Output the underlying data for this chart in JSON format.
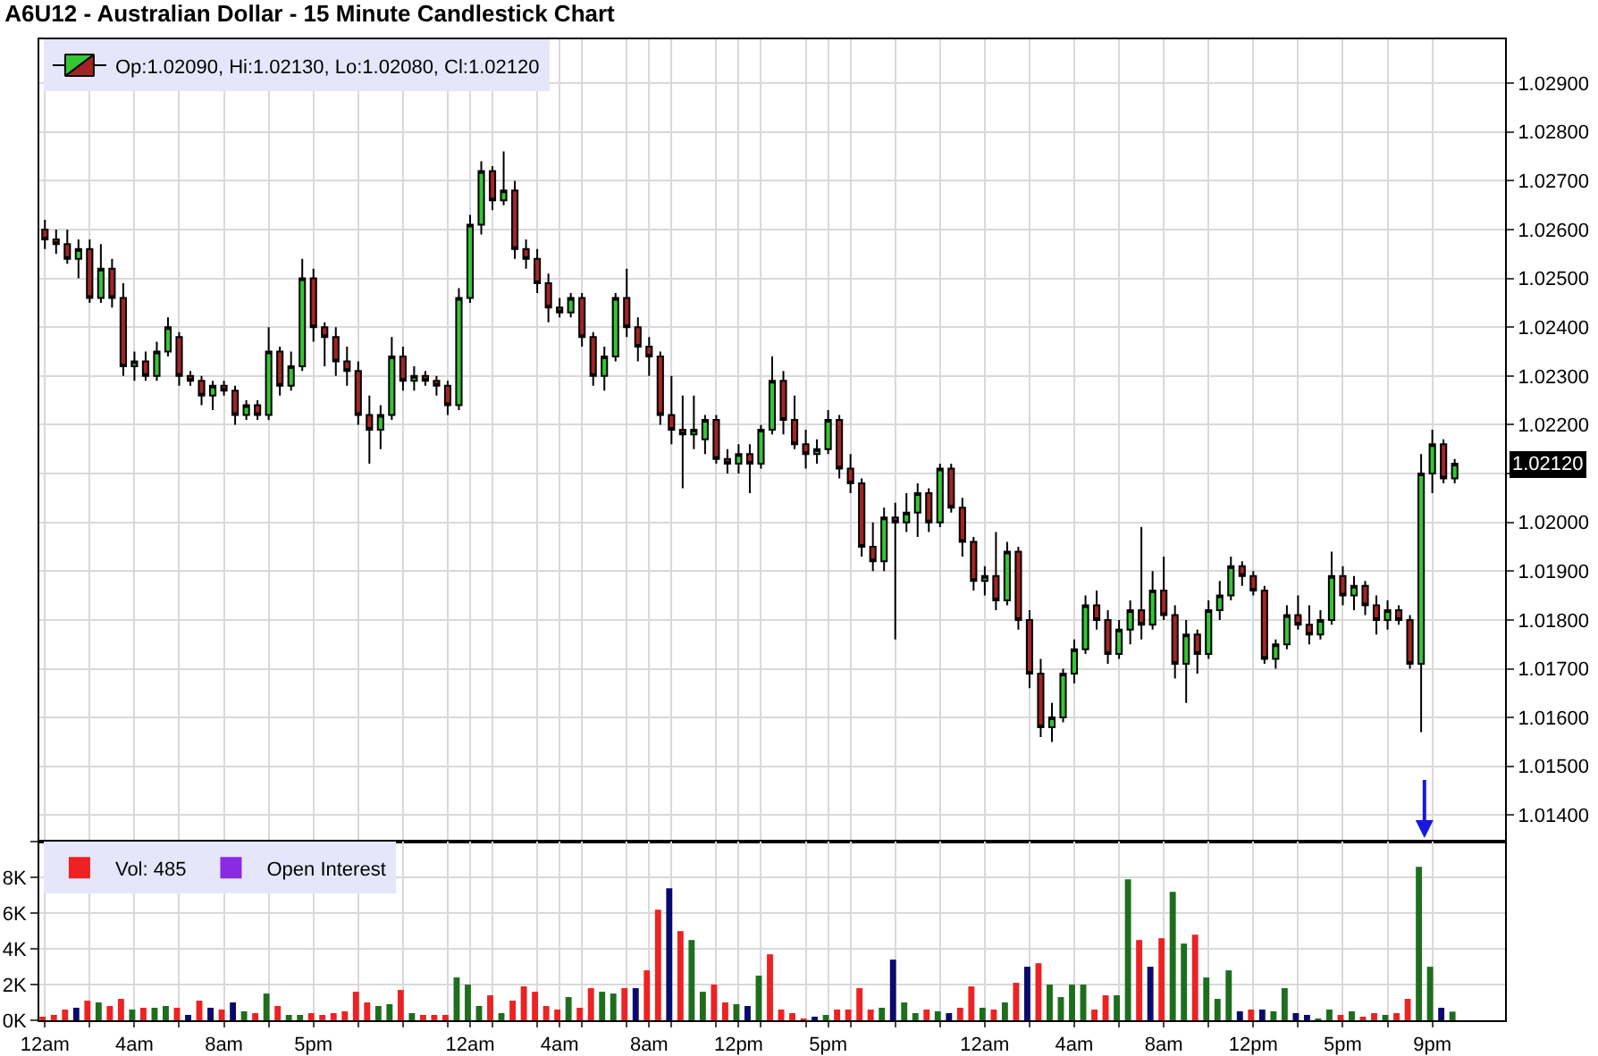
{
  "chart_data": [
    {
      "type": "candlestick",
      "title": "A6U12 - Australian Dollar - 15 Minute Candlestick Chart",
      "tick_labels": "y",
      "grid": true,
      "legend": "top left",
      "categories": [
        null,
        null,
        null,
        null,
        null,
        null,
        null,
        null,
        null,
        null,
        null,
        null,
        null,
        null,
        null,
        null,
        null,
        null,
        null,
        null,
        null,
        null,
        null,
        null,
        null,
        null,
        null,
        null,
        null,
        null,
        null,
        null,
        null,
        null,
        null,
        null,
        null,
        null,
        null,
        null,
        null,
        null,
        null,
        null,
        null,
        null,
        null,
        null,
        null,
        null,
        null,
        null,
        null,
        null,
        null,
        null,
        null,
        null,
        null,
        null,
        null,
        null,
        null,
        null,
        null,
        null,
        null,
        null,
        null,
        null,
        null,
        null,
        null,
        null,
        null,
        null,
        null,
        null,
        null,
        null,
        null,
        null,
        null,
        null,
        null,
        null,
        null,
        null,
        null,
        null,
        null,
        null,
        null,
        null,
        null,
        null,
        null,
        null,
        null,
        null,
        null,
        null,
        null,
        null,
        null,
        null,
        null,
        null,
        null,
        null,
        null,
        null,
        null,
        null,
        null,
        null,
        null,
        null,
        null,
        null,
        null,
        null,
        null,
        null,
        null,
        null,
        null
      ],
      "ylim": [
        1.01345,
        1.0299
      ],
      "yticks": [
        {
          "value": 1.014,
          "label": "1.01400"
        },
        {
          "value": 1.015,
          "label": "1.01500"
        },
        {
          "value": 1.016,
          "label": "1.01600"
        },
        {
          "value": 1.017,
          "label": "1.01700"
        },
        {
          "value": 1.018,
          "label": "1.01800"
        },
        {
          "value": 1.019,
          "label": "1.01900"
        },
        {
          "value": 1.02,
          "label": "1.02000"
        },
        {
          "value": 1.021,
          "label": null
        },
        {
          "value": 1.022,
          "label": "1.02200"
        },
        {
          "value": 1.023,
          "label": "1.02300"
        },
        {
          "value": 1.024,
          "label": "1.02400"
        },
        {
          "value": 1.025,
          "label": "1.02500"
        },
        {
          "value": 1.026,
          "label": "1.02600"
        },
        {
          "value": 1.027,
          "label": "1.02700"
        },
        {
          "value": 1.028,
          "label": "1.02800"
        },
        {
          "value": 1.029,
          "label": "1.02900"
        }
      ],
      "annotations": [
        "1.02120"
      ],
      "series": [
        {
          "name": "Op:1.02090, Hi:1.02130, Lo:1.02080, Cl:1.02120",
          "ohlc": [
            [
              1.026,
              1.0262,
              1.0256,
              1.0258
            ],
            [
              1.0258,
              1.026,
              1.0255,
              1.0257
            ],
            [
              1.0257,
              1.026,
              1.0253,
              1.0254
            ],
            [
              1.0254,
              1.0258,
              1.025,
              1.0256
            ],
            [
              1.0256,
              1.0258,
              1.0245,
              1.0246
            ],
            [
              1.0246,
              1.0257,
              1.0245,
              1.0252
            ],
            [
              1.0252,
              1.0254,
              1.0244,
              1.0246
            ],
            [
              1.0246,
              1.0249,
              1.023,
              1.0232
            ],
            [
              1.0232,
              1.0235,
              1.0229,
              1.0233
            ],
            [
              1.0233,
              1.0235,
              1.0229,
              1.023
            ],
            [
              1.023,
              1.0237,
              1.0229,
              1.0235
            ],
            [
              1.0235,
              1.0242,
              1.0234,
              1.024
            ],
            [
              1.0238,
              1.0239,
              1.0228,
              1.023
            ],
            [
              1.023,
              1.0231,
              1.0228,
              1.0229
            ],
            [
              1.0229,
              1.023,
              1.0224,
              1.0226
            ],
            [
              1.0226,
              1.0229,
              1.0223,
              1.0228
            ],
            [
              1.0228,
              1.0229,
              1.0226,
              1.0227
            ],
            [
              1.0227,
              1.0228,
              1.022,
              1.0222
            ],
            [
              1.0222,
              1.0225,
              1.0221,
              1.0224
            ],
            [
              1.0224,
              1.0225,
              1.0221,
              1.0222
            ],
            [
              1.0222,
              1.024,
              1.0221,
              1.0235
            ],
            [
              1.0235,
              1.0236,
              1.0226,
              1.0228
            ],
            [
              1.0228,
              1.0235,
              1.0227,
              1.0232
            ],
            [
              1.0232,
              1.0254,
              1.0231,
              1.025
            ],
            [
              1.025,
              1.0252,
              1.0237,
              1.024
            ],
            [
              1.024,
              1.0241,
              1.0232,
              1.0238
            ],
            [
              1.0238,
              1.024,
              1.023,
              1.0233
            ],
            [
              1.0233,
              1.0236,
              1.0228,
              1.0231
            ],
            [
              1.0231,
              1.0233,
              1.022,
              1.0222
            ],
            [
              1.0222,
              1.0226,
              1.0212,
              1.0219
            ],
            [
              1.0219,
              1.0224,
              1.0215,
              1.0222
            ],
            [
              1.0222,
              1.0238,
              1.0221,
              1.0234
            ],
            [
              1.0234,
              1.0236,
              1.0227,
              1.0229
            ],
            [
              1.0229,
              1.0232,
              1.0227,
              1.023
            ],
            [
              1.023,
              1.0231,
              1.0228,
              1.0229
            ],
            [
              1.0229,
              1.023,
              1.0226,
              1.0228
            ],
            [
              1.0228,
              1.0229,
              1.0222,
              1.0224
            ],
            [
              1.0224,
              1.0248,
              1.0223,
              1.0246
            ],
            [
              1.0246,
              1.0263,
              1.0245,
              1.0261
            ],
            [
              1.0261,
              1.0274,
              1.0259,
              1.0272
            ],
            [
              1.0272,
              1.0273,
              1.0264,
              1.0266
            ],
            [
              1.0266,
              1.0276,
              1.0265,
              1.0268
            ],
            [
              1.0268,
              1.027,
              1.0254,
              1.0256
            ],
            [
              1.0256,
              1.0258,
              1.0252,
              1.0254
            ],
            [
              1.0254,
              1.0256,
              1.0247,
              1.0249
            ],
            [
              1.0249,
              1.0251,
              1.0241,
              1.0244
            ],
            [
              1.0244,
              1.0246,
              1.0242,
              1.0243
            ],
            [
              1.0243,
              1.0247,
              1.0242,
              1.0246
            ],
            [
              1.0246,
              1.0247,
              1.0236,
              1.0238
            ],
            [
              1.0238,
              1.0239,
              1.0228,
              1.023
            ],
            [
              1.023,
              1.0236,
              1.0227,
              1.0234
            ],
            [
              1.0234,
              1.0247,
              1.0233,
              1.0246
            ],
            [
              1.0246,
              1.0252,
              1.0238,
              1.024
            ],
            [
              1.024,
              1.0242,
              1.0233,
              1.0236
            ],
            [
              1.0236,
              1.0238,
              1.023,
              1.0234
            ],
            [
              1.0234,
              1.0235,
              1.022,
              1.0222
            ],
            [
              1.0222,
              1.023,
              1.0216,
              1.0219
            ],
            [
              1.0219,
              1.0226,
              1.0207,
              1.0218
            ],
            [
              1.0218,
              1.0226,
              1.0215,
              1.0219
            ],
            [
              1.0217,
              1.0222,
              1.0214,
              1.0221
            ],
            [
              1.0221,
              1.0222,
              1.0212,
              1.0213
            ],
            [
              1.0213,
              1.0215,
              1.021,
              1.0212
            ],
            [
              1.0212,
              1.0216,
              1.021,
              1.0214
            ],
            [
              1.0214,
              1.0216,
              1.0206,
              1.0212
            ],
            [
              1.0212,
              1.022,
              1.0211,
              1.0219
            ],
            [
              1.0219,
              1.0234,
              1.0218,
              1.0229
            ],
            [
              1.0229,
              1.0231,
              1.0218,
              1.0221
            ],
            [
              1.0221,
              1.0226,
              1.0215,
              1.0216
            ],
            [
              1.0216,
              1.0219,
              1.0211,
              1.0214
            ],
            [
              1.0214,
              1.0217,
              1.0212,
              1.0215
            ],
            [
              1.0215,
              1.0223,
              1.0214,
              1.0221
            ],
            [
              1.0221,
              1.0222,
              1.0209,
              1.0211
            ],
            [
              1.0211,
              1.0214,
              1.0206,
              1.0208
            ],
            [
              1.0208,
              1.0209,
              1.0193,
              1.0195
            ],
            [
              1.0195,
              1.02,
              1.019,
              1.0192
            ],
            [
              1.0192,
              1.0203,
              1.019,
              1.0201
            ],
            [
              1.0201,
              1.0204,
              1.0176,
              1.02
            ],
            [
              1.02,
              1.0206,
              1.0198,
              1.0202
            ],
            [
              1.0202,
              1.0208,
              1.0197,
              1.0206
            ],
            [
              1.0206,
              1.0207,
              1.0198,
              1.02
            ],
            [
              1.02,
              1.0212,
              1.0199,
              1.0211
            ],
            [
              1.0211,
              1.0212,
              1.0202,
              1.0203
            ],
            [
              1.0203,
              1.0205,
              1.0193,
              1.0196
            ],
            [
              1.0196,
              1.0197,
              1.0186,
              1.0188
            ],
            [
              1.0188,
              1.0191,
              1.0185,
              1.0189
            ],
            [
              1.0189,
              1.0198,
              1.0182,
              1.0184
            ],
            [
              1.0184,
              1.0196,
              1.0183,
              1.0194
            ],
            [
              1.0194,
              1.0195,
              1.0178,
              1.018
            ],
            [
              1.018,
              1.0182,
              1.0166,
              1.0169
            ],
            [
              1.0169,
              1.0172,
              1.0156,
              1.0158
            ],
            [
              1.0158,
              1.0163,
              1.0155,
              1.016
            ],
            [
              1.016,
              1.017,
              1.0159,
              1.0169
            ],
            [
              1.0169,
              1.0176,
              1.0167,
              1.0174
            ],
            [
              1.0174,
              1.0185,
              1.0173,
              1.0183
            ],
            [
              1.0183,
              1.0186,
              1.0178,
              1.018
            ],
            [
              1.018,
              1.0182,
              1.0171,
              1.0173
            ],
            [
              1.0173,
              1.018,
              1.0172,
              1.0178
            ],
            [
              1.0178,
              1.0184,
              1.0175,
              1.0182
            ],
            [
              1.0182,
              1.0199,
              1.0176,
              1.0179
            ],
            [
              1.0179,
              1.019,
              1.0178,
              1.0186
            ],
            [
              1.0186,
              1.0193,
              1.018,
              1.0181
            ],
            [
              1.0181,
              1.0183,
              1.0168,
              1.0171
            ],
            [
              1.0171,
              1.018,
              1.0163,
              1.0177
            ],
            [
              1.0177,
              1.0178,
              1.0169,
              1.0173
            ],
            [
              1.0173,
              1.0184,
              1.0172,
              1.0182
            ],
            [
              1.0182,
              1.0188,
              1.018,
              1.0185
            ],
            [
              1.0185,
              1.0193,
              1.0184,
              1.0191
            ],
            [
              1.0191,
              1.0192,
              1.0187,
              1.0189
            ],
            [
              1.0189,
              1.019,
              1.0185,
              1.0186
            ],
            [
              1.0186,
              1.0187,
              1.0171,
              1.0172
            ],
            [
              1.0172,
              1.0176,
              1.017,
              1.0175
            ],
            [
              1.0175,
              1.0183,
              1.0174,
              1.0181
            ],
            [
              1.0181,
              1.0185,
              1.0178,
              1.0179
            ],
            [
              1.0179,
              1.0183,
              1.0175,
              1.0177
            ],
            [
              1.0177,
              1.0182,
              1.0176,
              1.018
            ],
            [
              1.018,
              1.0194,
              1.0179,
              1.0189
            ],
            [
              1.0189,
              1.0191,
              1.0183,
              1.0185
            ],
            [
              1.0185,
              1.0189,
              1.0182,
              1.0187
            ],
            [
              1.0187,
              1.0188,
              1.0181,
              1.0183
            ],
            [
              1.0183,
              1.0185,
              1.0177,
              1.018
            ],
            [
              1.018,
              1.0184,
              1.0178,
              1.0182
            ],
            [
              1.0182,
              1.0183,
              1.0179,
              1.018
            ],
            [
              1.018,
              1.0181,
              1.017,
              1.0171
            ],
            [
              1.0171,
              1.0214,
              1.0157,
              1.021
            ],
            [
              1.021,
              1.0219,
              1.0206,
              1.0216
            ],
            [
              1.0216,
              1.0217,
              1.0208,
              1.0209
            ],
            [
              1.0209,
              1.0213,
              1.0208,
              1.0212
            ]
          ]
        }
      ]
    },
    {
      "type": "bar",
      "grid": true,
      "legend": "top left",
      "categories": [
        "12am",
        null,
        null,
        null,
        null,
        null,
        null,
        null,
        "4am",
        null,
        null,
        null,
        null,
        null,
        null,
        null,
        "8am",
        null,
        null,
        null,
        null,
        null,
        null,
        null,
        "5pm",
        null,
        null,
        null,
        null,
        null,
        null,
        null,
        null,
        null,
        null,
        null,
        null,
        null,
        "12am",
        null,
        null,
        null,
        null,
        null,
        null,
        null,
        "4am",
        null,
        null,
        null,
        null,
        null,
        null,
        null,
        "8am",
        null,
        null,
        null,
        null,
        null,
        null,
        null,
        "12pm",
        null,
        null,
        null,
        null,
        null,
        null,
        null,
        "5pm",
        null,
        null,
        null,
        null,
        null,
        null,
        null,
        null,
        null,
        null,
        null,
        null,
        null,
        "12am",
        null,
        null,
        null,
        null,
        null,
        null,
        null,
        "4am",
        null,
        null,
        null,
        null,
        null,
        null,
        null,
        "8am",
        null,
        null,
        null,
        null,
        null,
        null,
        null,
        "12pm",
        null,
        null,
        null,
        null,
        null,
        null,
        null,
        "5pm",
        null,
        null,
        null,
        null,
        null,
        null,
        null,
        "9pm",
        null,
        null
      ],
      "ylim": [
        0,
        10000
      ],
      "yticks": [
        {
          "value": 0,
          "label": "0K"
        },
        {
          "value": 2000,
          "label": "2K"
        },
        {
          "value": 4000,
          "label": "4K"
        },
        {
          "value": 6000,
          "label": "6K"
        },
        {
          "value": 8000,
          "label": "8K"
        },
        {
          "value": 10000,
          "label": null
        }
      ],
      "series": [
        {
          "name": "Vol: 485",
          "colors": [
            "#ee2222",
            "#ee2222",
            "#ee2222",
            "#0a0a6e",
            "#ee2222",
            "#1e6e1e",
            "#ee2222",
            "#ee2222",
            "#1e6e1e",
            "#ee2222",
            "#1e6e1e",
            "#1e6e1e",
            "#ee2222",
            "#0a0a6e",
            "#ee2222",
            "#0a0a6e",
            "#ee2222",
            "#0a0a6e",
            "#1e6e1e",
            "#ee2222",
            "#1e6e1e",
            "#ee2222",
            "#1e6e1e",
            "#1e6e1e",
            "#ee2222",
            "#ee2222",
            "#ee2222",
            "#ee2222",
            "#ee2222",
            "#ee2222",
            "#1e6e1e",
            "#1e6e1e",
            "#ee2222",
            "#1e6e1e",
            "#ee2222",
            "#ee2222",
            "#ee2222",
            "#1e6e1e",
            "#1e6e1e",
            "#1e6e1e",
            "#ee2222",
            "#1e6e1e",
            "#ee2222",
            "#ee2222",
            "#ee2222",
            "#ee2222",
            "#ee2222",
            "#1e6e1e",
            "#ee2222",
            "#ee2222",
            "#1e6e1e",
            "#1e6e1e",
            "#ee2222",
            "#0a0a6e",
            "#ee2222",
            "#ee2222",
            "#0a0a6e",
            "#ee2222",
            "#1e6e1e",
            "#1e6e1e",
            "#ee2222",
            "#ee2222",
            "#1e6e1e",
            "#0a0a6e",
            "#1e6e1e",
            "#ee2222",
            "#ee2222",
            "#ee2222",
            "#ee2222",
            "#0a0a6e",
            "#1e6e1e",
            "#ee2222",
            "#ee2222",
            "#ee2222",
            "#ee2222",
            "#1e6e1e",
            "#0a0a6e",
            "#1e6e1e",
            "#1e6e1e",
            "#ee2222",
            "#1e6e1e",
            "#0a0a6e",
            "#ee2222",
            "#ee2222",
            "#1e6e1e",
            "#ee2222",
            "#1e6e1e",
            "#ee2222",
            "#0a0a6e",
            "#ee2222",
            "#1e6e1e",
            "#1e6e1e",
            "#1e6e1e",
            "#1e6e1e",
            "#ee2222",
            "#ee2222",
            "#1e6e1e",
            "#1e6e1e",
            "#ee2222",
            "#0a0a6e",
            "#ee2222",
            "#1e6e1e",
            "#1e6e1e",
            "#ee2222",
            "#1e6e1e",
            "#1e6e1e",
            "#1e6e1e",
            "#0a0a6e",
            "#ee2222",
            "#0a0a6e",
            "#1e6e1e",
            "#1e6e1e",
            "#0a0a6e",
            "#0a0a6e",
            "#1e6e1e",
            "#1e6e1e",
            "#ee2222",
            "#1e6e1e",
            "#ee2222",
            "#ee2222",
            "#1e6e1e",
            "#ee2222",
            "#ee2222",
            "#1e6e1e",
            "#1e6e1e",
            "#0a0a6e",
            "#1e6e1e"
          ],
          "values": [
            200,
            300,
            600,
            700,
            1100,
            1000,
            800,
            1200,
            600,
            700,
            700,
            800,
            700,
            300,
            1100,
            700,
            600,
            1000,
            500,
            400,
            1500,
            800,
            300,
            300,
            400,
            300,
            400,
            500,
            1600,
            1000,
            800,
            900,
            1700,
            400,
            300,
            300,
            300,
            2400,
            2000,
            800,
            1400,
            400,
            1100,
            1900,
            1600,
            800,
            600,
            1300,
            700,
            1800,
            1600,
            1500,
            1800,
            1800,
            2800,
            6200,
            7400,
            5000,
            4500,
            1600,
            2000,
            1000,
            900,
            800,
            2500,
            3700,
            600,
            400,
            100,
            200,
            300,
            600,
            600,
            1800,
            600,
            700,
            3400,
            1000,
            400,
            600,
            500,
            400,
            700,
            1900,
            700,
            600,
            1000,
            2100,
            3000,
            3200,
            2000,
            1300,
            2000,
            2000,
            600,
            1400,
            1400,
            7900,
            4500,
            3000,
            4600,
            7200,
            4300,
            4800,
            2400,
            1200,
            2800,
            500,
            600,
            600,
            500,
            1800,
            400,
            300,
            100,
            600,
            300,
            500,
            200,
            400,
            300,
            400,
            1200,
            8600,
            3000,
            700,
            485
          ]
        },
        {
          "name": "Open Interest",
          "color": "#8a2be2",
          "values": [
            null,
            null,
            null,
            null,
            null,
            null,
            null,
            null,
            null,
            null,
            null,
            null,
            null,
            null,
            null,
            null,
            null,
            null,
            null,
            null,
            null,
            null,
            null,
            null,
            null,
            null,
            null,
            null,
            null,
            null,
            null,
            null,
            null,
            null,
            null,
            null,
            null,
            null,
            null,
            null,
            null,
            null,
            null,
            null,
            null,
            null,
            null,
            null,
            null,
            null,
            null,
            null,
            null,
            null,
            null,
            null,
            null,
            null,
            null,
            null,
            null,
            null,
            null,
            null,
            null,
            null,
            null,
            null,
            null,
            null,
            null,
            null,
            null,
            null,
            null,
            null,
            null,
            null,
            null,
            null,
            null,
            null,
            null,
            null,
            null,
            null,
            null,
            null,
            null,
            null,
            null,
            null,
            null,
            null,
            null,
            null,
            null,
            null,
            null,
            null,
            null,
            null,
            null,
            null,
            null,
            null,
            null,
            null,
            null,
            null,
            null,
            null,
            null,
            null,
            null,
            null,
            null,
            null,
            null,
            null,
            null,
            null,
            null,
            null,
            null,
            null,
            null
          ]
        }
      ]
    }
  ]
}
